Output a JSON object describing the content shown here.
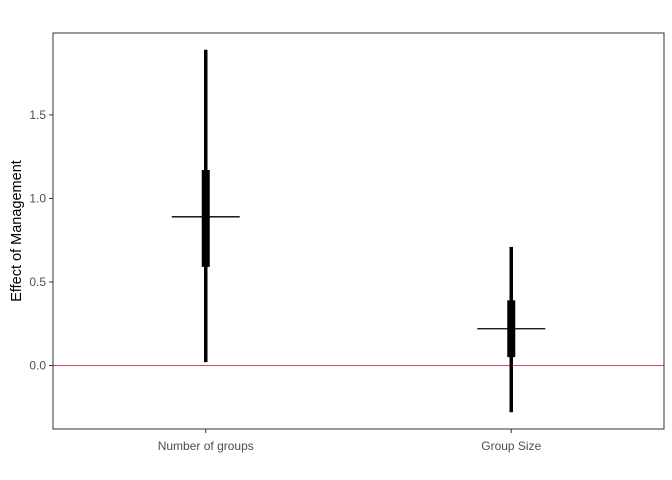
{
  "chart_data": {
    "type": "interval",
    "ylabel": "Effect of Management",
    "xlabel": "",
    "ylim": [
      -0.38,
      1.99
    ],
    "yticks": [
      0.0,
      0.5,
      1.0,
      1.5
    ],
    "ytick_labels": [
      "0.0",
      "0.5",
      "1.0",
      "1.5"
    ],
    "categories": [
      "Number of groups",
      "Group Size"
    ],
    "estimates": [
      0.89,
      0.22
    ],
    "inner_interval": [
      [
        0.59,
        1.17
      ],
      [
        0.05,
        0.39
      ]
    ],
    "outer_interval": [
      [
        0.02,
        1.89
      ],
      [
        -0.28,
        0.71
      ]
    ],
    "reference_line": 0.0,
    "grid": false,
    "colors": {
      "interval": "#000000",
      "reference_line": "#e0485a",
      "panel_border": "#333333",
      "tick_label": "#4d4d4d"
    }
  }
}
